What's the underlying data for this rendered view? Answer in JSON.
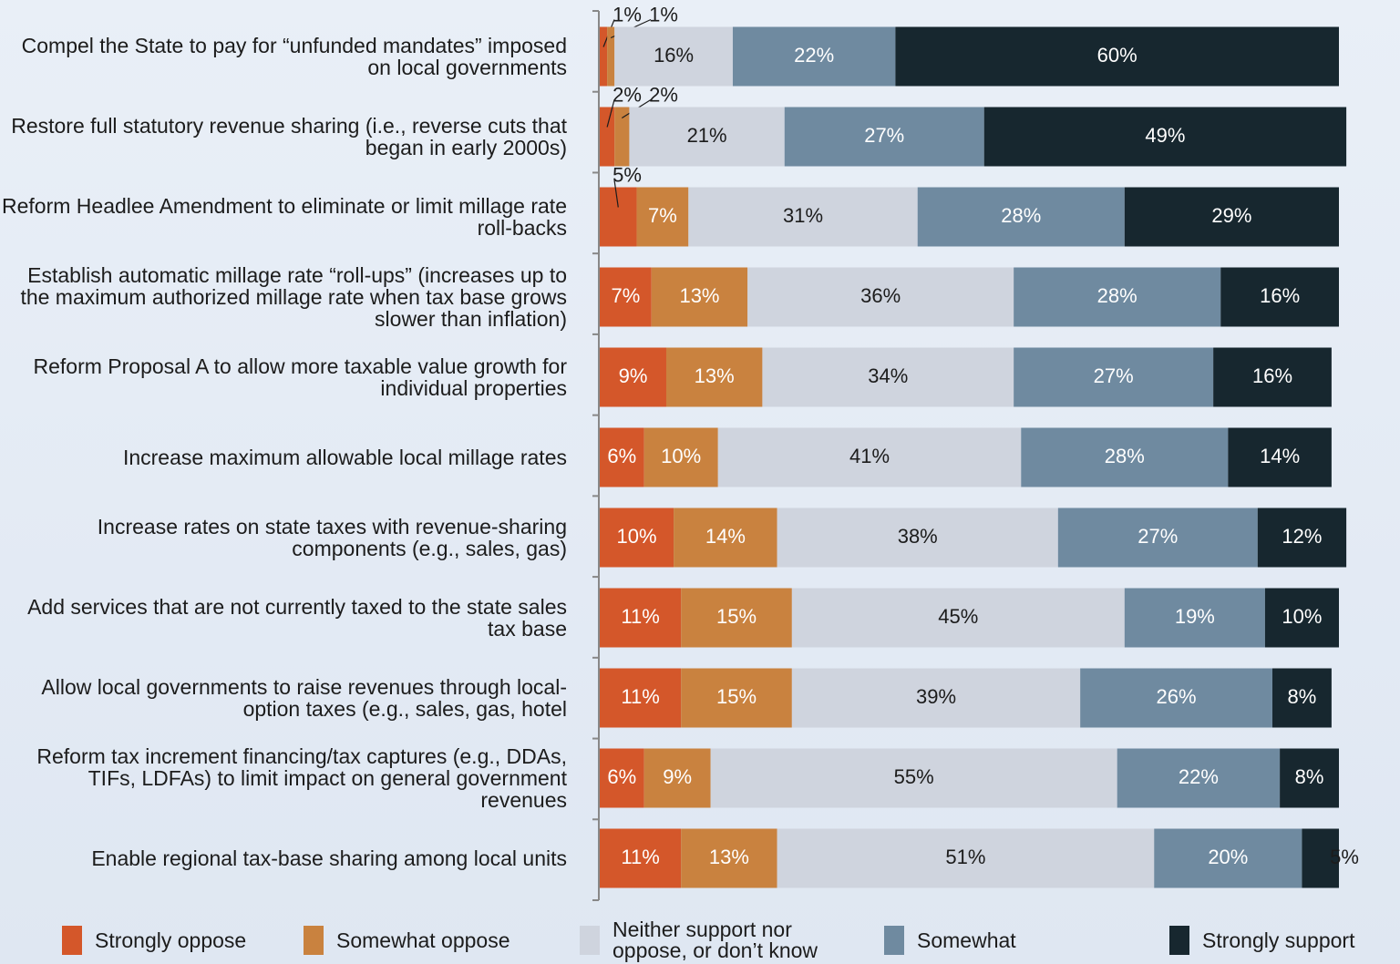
{
  "chart_data": {
    "type": "stacked-bar-horizontal",
    "categories": [
      "Compel the State to pay for “unfunded mandates” imposed on local governments",
      "Restore full statutory revenue sharing (i.e., reverse cuts that began in early 2000s)",
      "Reform Headlee Amendment to eliminate or limit millage rate roll-backs",
      "Establish automatic millage rate “roll-ups” (increases up to the maximum authorized millage rate when tax base grows slower than inflation)",
      "Reform Proposal A to allow more taxable value growth for individual properties",
      "Increase maximum allowable local millage rates",
      "Increase rates on state taxes with revenue-sharing components (e.g., sales, gas)",
      "Add services that are not currently taxed to the state sales tax base",
      "Allow local governments to raise revenues through local-option taxes (e.g., sales, gas, hotel",
      "Reform tax increment financing/tax captures (e.g., DDAs, TIFs, LDFAs) to limit impact  on general government revenues",
      "Enable regional tax-base sharing among local units"
    ],
    "xlim": [
      0,
      100
    ],
    "series": [
      {
        "name": "Strongly oppose",
        "color": "#d4572a",
        "values": [
          1,
          2,
          5,
          7,
          9,
          6,
          10,
          11,
          11,
          6,
          11
        ],
        "value_labels": [
          "1%",
          "2%",
          "5%",
          "7%",
          "9%",
          "6%",
          "10%",
          "11%",
          "11%",
          "6%",
          "11%"
        ]
      },
      {
        "name": "Somewhat oppose",
        "color": "#c9823f",
        "values": [
          1,
          2,
          7,
          13,
          13,
          10,
          14,
          15,
          15,
          9,
          13
        ],
        "value_labels": [
          "1%",
          "2%",
          "7%",
          "13%",
          "13%",
          "10%",
          "14%",
          "15%",
          "15%",
          "9%",
          "13%"
        ]
      },
      {
        "name": "Neither support nor oppose, or don’t know",
        "color": "#cfd4de",
        "values": [
          16,
          21,
          31,
          36,
          34,
          41,
          38,
          45,
          39,
          55,
          51
        ],
        "value_labels": [
          "16%",
          "21%",
          "31%",
          "36%",
          "34%",
          "41%",
          "38%",
          "45%",
          "39%",
          "55%",
          "51%"
        ]
      },
      {
        "name": "Somewhat",
        "color": "#6f8aa0",
        "values": [
          22,
          27,
          28,
          28,
          27,
          28,
          27,
          19,
          26,
          22,
          20
        ],
        "value_labels": [
          "22%",
          "27%",
          "28%",
          "28%",
          "27%",
          "28%",
          "27%",
          "19%",
          "26%",
          "22%",
          "20%"
        ]
      },
      {
        "name": "Strongly support",
        "color": "#17272f",
        "values": [
          60,
          49,
          29,
          16,
          16,
          14,
          12,
          10,
          8,
          8,
          5
        ],
        "value_labels": [
          "60%",
          "49%",
          "29%",
          "16%",
          "16%",
          "14%",
          "12%",
          "10%",
          "8%",
          "8%",
          "5%"
        ]
      }
    ]
  }
}
